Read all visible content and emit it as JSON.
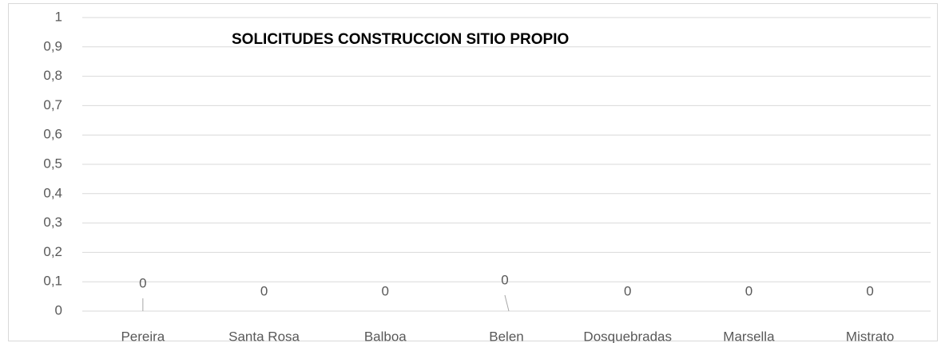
{
  "chart_data": {
    "type": "bar",
    "title": "SOLICITUDES  CONSTRUCCION SITIO PROPIO",
    "categories": [
      "Pereira",
      "Santa Rosa",
      "Balboa",
      "Belen",
      "Dosquebradas",
      "Marsella",
      "Mistrato"
    ],
    "values": [
      0,
      0,
      0,
      0,
      0,
      0,
      0
    ],
    "ylim": [
      0,
      1
    ],
    "yticks": [
      0,
      {
        "value": 0.1,
        "label": "0,1"
      },
      {
        "value": 0.2,
        "label": "0,2"
      },
      {
        "value": 0.3,
        "label": "0,3"
      },
      {
        "value": 0.4,
        "label": "0,4"
      },
      {
        "value": 0.5,
        "label": "0,5"
      },
      {
        "value": 0.6,
        "label": "0,6"
      },
      {
        "value": 0.7,
        "label": "0,7"
      },
      {
        "value": 0.8,
        "label": "0,8"
      },
      {
        "value": 0.9,
        "label": "0,9"
      },
      1
    ],
    "grid": true
  }
}
